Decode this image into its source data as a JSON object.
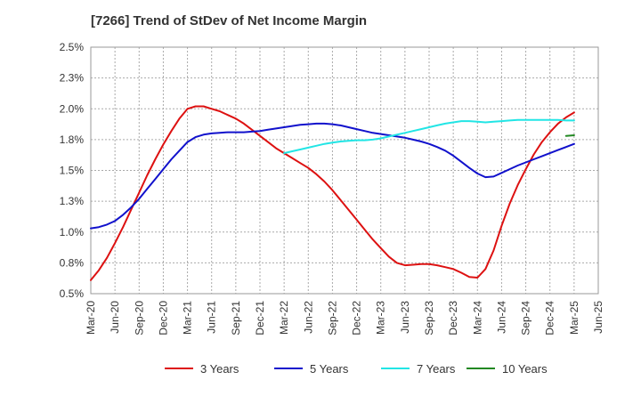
{
  "chart_data": {
    "type": "line",
    "title": "[7266]  Trend of StDev of Net Income Margin",
    "xlabel": "",
    "ylabel": "",
    "ylim": [
      0.5,
      2.5
    ],
    "y_ticks": [
      "0.5%",
      "0.8%",
      "1.0%",
      "1.3%",
      "1.5%",
      "1.8%",
      "2.0%",
      "2.3%",
      "2.5%"
    ],
    "x_ticks": [
      "Mar-20",
      "Jun-20",
      "Sep-20",
      "Dec-20",
      "Mar-21",
      "Jun-21",
      "Sep-21",
      "Dec-21",
      "Mar-22",
      "Jun-22",
      "Sep-22",
      "Dec-22",
      "Mar-23",
      "Jun-23",
      "Sep-23",
      "Dec-23",
      "Mar-24",
      "Jun-24",
      "Sep-24",
      "Dec-24",
      "Mar-25",
      "Jun-25"
    ],
    "grid": true,
    "legend_position": "bottom",
    "series": [
      {
        "name": "3 Years",
        "color": "#dd1111",
        "x": [
          "Mar-20",
          "Apr-20",
          "May-20",
          "Jun-20",
          "Jul-20",
          "Aug-20",
          "Sep-20",
          "Oct-20",
          "Nov-20",
          "Dec-20",
          "Jan-21",
          "Feb-21",
          "Mar-21",
          "Apr-21",
          "May-21",
          "Jun-21",
          "Jul-21",
          "Aug-21",
          "Sep-21",
          "Oct-21",
          "Nov-21",
          "Dec-21",
          "Jan-22",
          "Feb-22",
          "Mar-22",
          "Apr-22",
          "May-22",
          "Jun-22",
          "Jul-22",
          "Aug-22",
          "Sep-22",
          "Oct-22",
          "Nov-22",
          "Dec-22",
          "Jan-23",
          "Feb-23",
          "Mar-23",
          "Apr-23",
          "May-23",
          "Jun-23",
          "Jul-23",
          "Aug-23",
          "Sep-23",
          "Oct-23",
          "Nov-23",
          "Dec-23",
          "Jan-24",
          "Feb-24",
          "Mar-24",
          "Apr-24",
          "May-24",
          "Jun-24",
          "Jul-24",
          "Aug-24",
          "Sep-24",
          "Oct-24",
          "Nov-24",
          "Dec-24",
          "Jan-25",
          "Feb-25",
          "Mar-25"
        ],
        "values": [
          0.61,
          0.69,
          0.79,
          0.91,
          1.04,
          1.18,
          1.32,
          1.46,
          1.59,
          1.71,
          1.82,
          1.92,
          2.0,
          2.02,
          2.02,
          2.0,
          1.98,
          1.95,
          1.92,
          1.88,
          1.83,
          1.78,
          1.73,
          1.68,
          1.64,
          1.6,
          1.56,
          1.52,
          1.47,
          1.41,
          1.34,
          1.26,
          1.18,
          1.1,
          1.02,
          0.94,
          0.87,
          0.8,
          0.75,
          0.73,
          0.735,
          0.74,
          0.74,
          0.73,
          0.715,
          0.7,
          0.67,
          0.635,
          0.63,
          0.7,
          0.85,
          1.05,
          1.23,
          1.38,
          1.51,
          1.63,
          1.73,
          1.81,
          1.88,
          1.93,
          1.97
        ]
      },
      {
        "name": "5 Years",
        "color": "#1111cc",
        "x": [
          "Mar-20",
          "Apr-20",
          "May-20",
          "Jun-20",
          "Jul-20",
          "Aug-20",
          "Sep-20",
          "Oct-20",
          "Nov-20",
          "Dec-20",
          "Jan-21",
          "Feb-21",
          "Mar-21",
          "Apr-21",
          "May-21",
          "Jun-21",
          "Jul-21",
          "Aug-21",
          "Sep-21",
          "Oct-21",
          "Nov-21",
          "Dec-21",
          "Jan-22",
          "Feb-22",
          "Mar-22",
          "Apr-22",
          "May-22",
          "Jun-22",
          "Jul-22",
          "Aug-22",
          "Sep-22",
          "Oct-22",
          "Nov-22",
          "Dec-22",
          "Jan-23",
          "Feb-23",
          "Mar-23",
          "Apr-23",
          "May-23",
          "Jun-23",
          "Jul-23",
          "Aug-23",
          "Sep-23",
          "Oct-23",
          "Nov-23",
          "Dec-23",
          "Jan-24",
          "Feb-24",
          "Mar-24",
          "Apr-24",
          "May-24",
          "Jun-24",
          "Jul-24",
          "Aug-24",
          "Sep-24",
          "Oct-24",
          "Nov-24",
          "Dec-24",
          "Jan-25",
          "Feb-25",
          "Mar-25"
        ],
        "values": [
          1.03,
          1.04,
          1.06,
          1.09,
          1.14,
          1.2,
          1.27,
          1.35,
          1.43,
          1.51,
          1.59,
          1.66,
          1.73,
          1.77,
          1.79,
          1.8,
          1.805,
          1.81,
          1.81,
          1.81,
          1.815,
          1.82,
          1.83,
          1.84,
          1.85,
          1.86,
          1.87,
          1.875,
          1.88,
          1.88,
          1.875,
          1.865,
          1.85,
          1.835,
          1.82,
          1.805,
          1.795,
          1.785,
          1.775,
          1.765,
          1.75,
          1.735,
          1.715,
          1.69,
          1.66,
          1.62,
          1.57,
          1.52,
          1.475,
          1.445,
          1.45,
          1.48,
          1.51,
          1.54,
          1.565,
          1.59,
          1.615,
          1.64,
          1.665,
          1.69,
          1.715
        ]
      },
      {
        "name": "7 Years",
        "color": "#22e5e5",
        "x": [
          "Mar-22",
          "Apr-22",
          "May-22",
          "Jun-22",
          "Jul-22",
          "Aug-22",
          "Sep-22",
          "Oct-22",
          "Nov-22",
          "Dec-22",
          "Jan-23",
          "Feb-23",
          "Mar-23",
          "Apr-23",
          "May-23",
          "Jun-23",
          "Jul-23",
          "Aug-23",
          "Sep-23",
          "Oct-23",
          "Nov-23",
          "Dec-23",
          "Jan-24",
          "Feb-24",
          "Mar-24",
          "Apr-24",
          "May-24",
          "Jun-24",
          "Jul-24",
          "Aug-24",
          "Sep-24",
          "Oct-24",
          "Nov-24",
          "Dec-24",
          "Jan-25",
          "Feb-25",
          "Mar-25"
        ],
        "values": [
          1.64,
          1.655,
          1.67,
          1.685,
          1.7,
          1.715,
          1.725,
          1.735,
          1.74,
          1.745,
          1.745,
          1.75,
          1.76,
          1.775,
          1.79,
          1.805,
          1.82,
          1.835,
          1.85,
          1.865,
          1.88,
          1.89,
          1.9,
          1.9,
          1.895,
          1.89,
          1.895,
          1.9,
          1.905,
          1.91,
          1.91,
          1.91,
          1.91,
          1.91,
          1.91,
          1.905,
          1.905
        ]
      },
      {
        "name": "10 Years",
        "color": "#228822",
        "x": [
          "Feb-25",
          "Mar-25"
        ],
        "values": [
          1.78,
          1.785
        ]
      }
    ]
  }
}
